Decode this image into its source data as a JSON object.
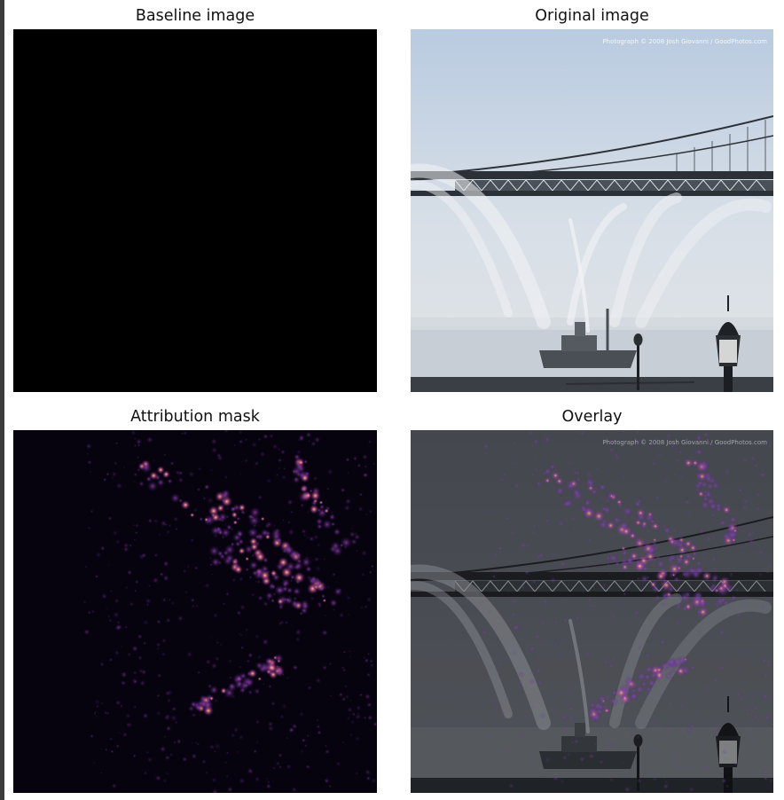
{
  "panels": [
    {
      "id": "baseline",
      "title": "Baseline image"
    },
    {
      "id": "original",
      "title": "Original image",
      "watermark": "Photograph © 2008 Josh Giovanni / GoodPhotos.com"
    },
    {
      "id": "attribution",
      "title": "Attribution mask"
    },
    {
      "id": "overlay",
      "title": "Overlay",
      "watermark": "Photograph © 2008 Josh Giovanni / GoodPhotos.com"
    }
  ],
  "colors": {
    "baseline_fill": "#000000",
    "sky_top": "#c2d1e2",
    "sky_bottom": "#dfe4e8",
    "water": "#c6cfd8",
    "bridge": "#2c3138",
    "mask_bg": "#06030f",
    "mask_hot": "#f7c768",
    "mask_mid": "#8c3bb3",
    "overlay_tint": "#3d3f49"
  }
}
